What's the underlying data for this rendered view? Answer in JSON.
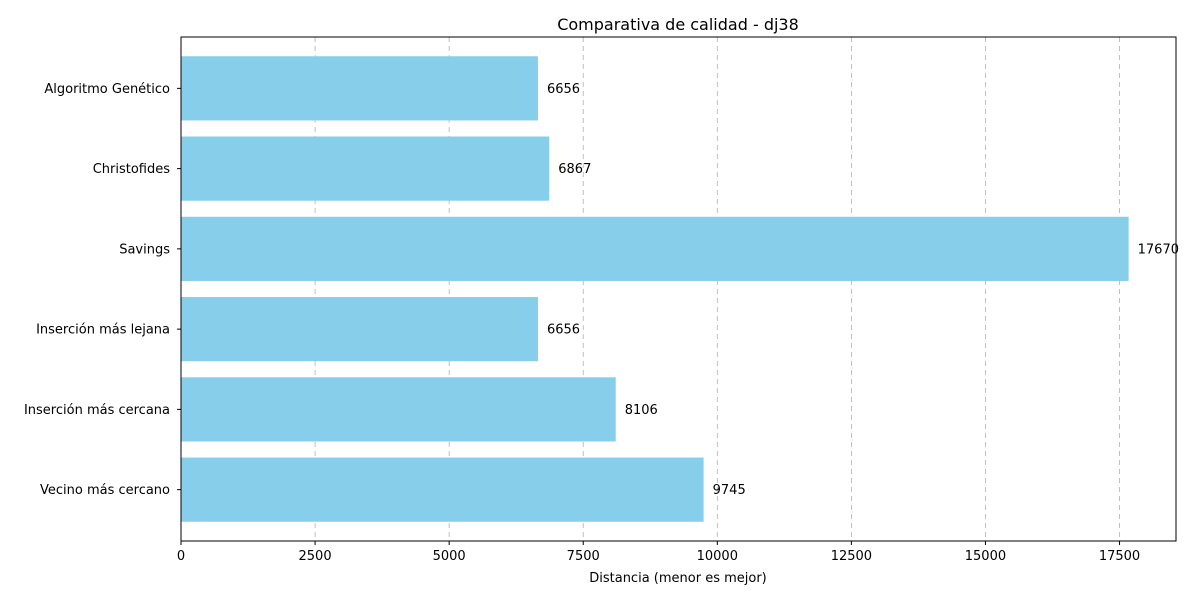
{
  "chart_data": {
    "type": "bar",
    "orientation": "horizontal",
    "title": "Comparativa de calidad - dj38",
    "xlabel": "Distancia (menor es mejor)",
    "ylabel": "",
    "categories": [
      "Vecino más cercano",
      "Inserción más cercana",
      "Inserción más lejana",
      "Savings",
      "Christofides",
      "Algoritmo Genético"
    ],
    "values": [
      9745,
      8106,
      6656,
      17670,
      6867,
      6656
    ],
    "data_labels": [
      "9745",
      "8106",
      "6656",
      "17670",
      "6867",
      "6656"
    ],
    "xlim": [
      0,
      18553
    ],
    "xticks": [
      0,
      2500,
      5000,
      7500,
      10000,
      12500,
      15000,
      17500
    ],
    "xtick_labels": [
      "0",
      "2500",
      "5000",
      "7500",
      "10000",
      "12500",
      "15000",
      "17500"
    ],
    "grid": "vertical dashed",
    "bar_color": "#87ceeb",
    "legend": "none"
  }
}
